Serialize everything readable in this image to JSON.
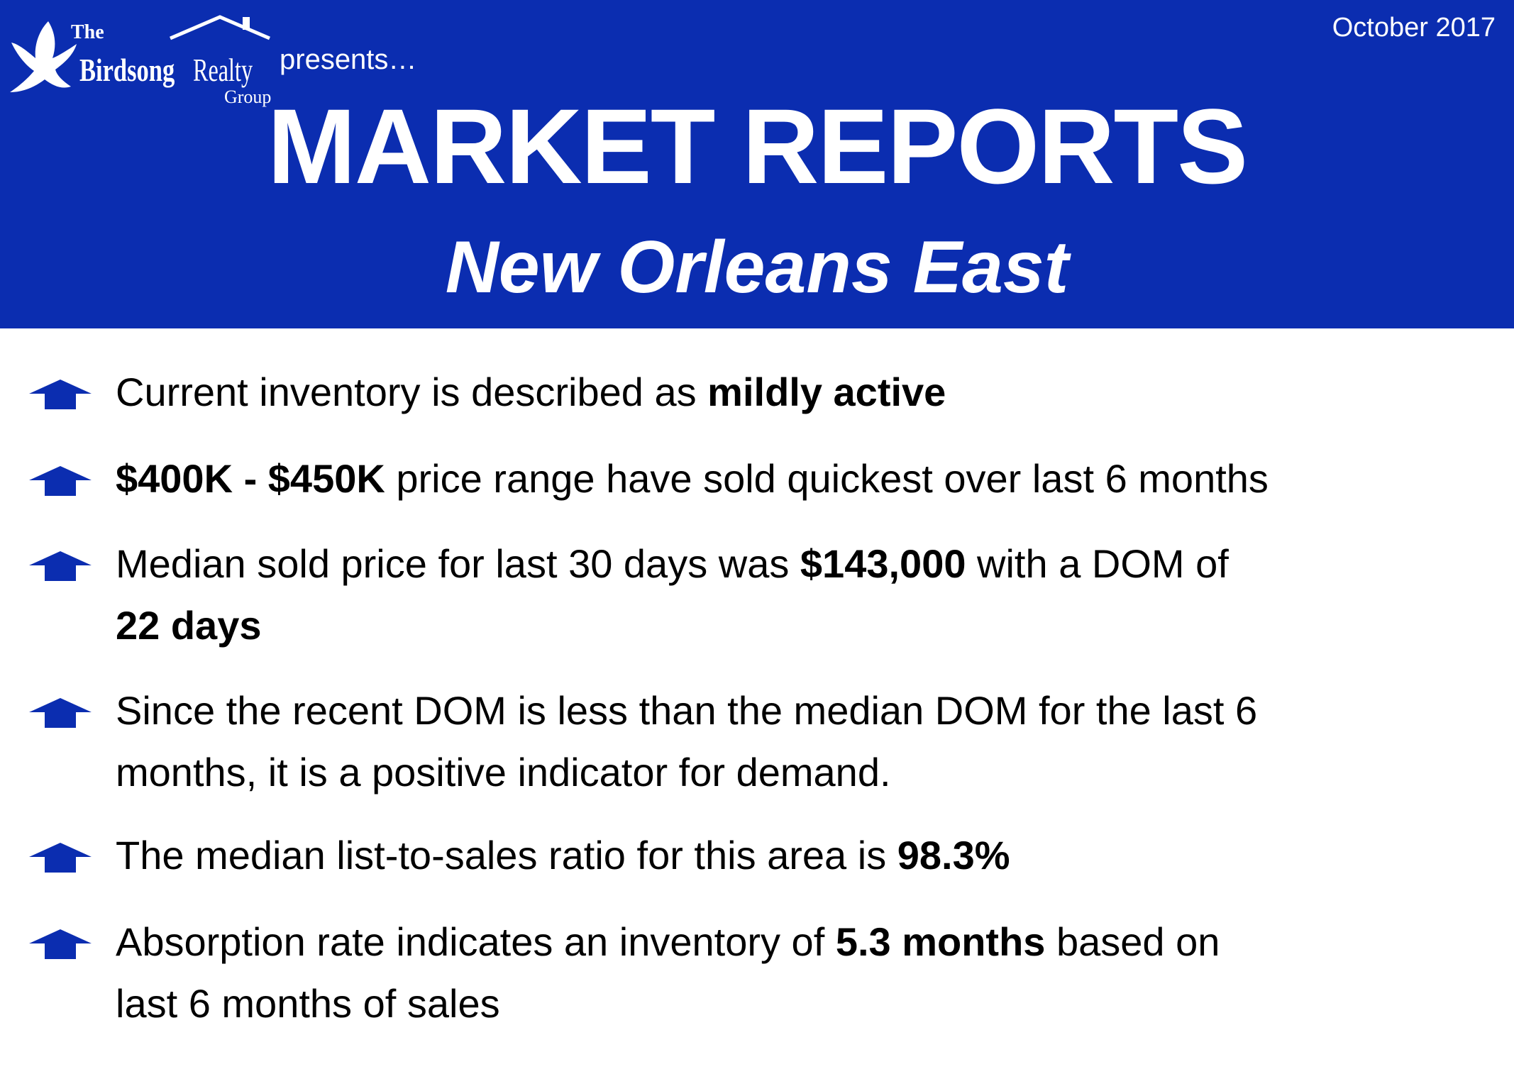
{
  "header": {
    "date": "October 2017",
    "logo": {
      "the": "The",
      "name1": "Birdsong",
      "name2": "Realty",
      "group": "Group"
    },
    "presents": "presents…",
    "title": "MARKET REPORTS",
    "subtitle": "New Orleans East"
  },
  "bullets": [
    {
      "lines": [
        [
          {
            "text": "Current inventory is described as ",
            "bold": false
          },
          {
            "text": "mildly active",
            "bold": true
          }
        ]
      ]
    },
    {
      "lines": [
        [
          {
            "text": "$400K - $450K",
            "bold": true
          },
          {
            "text": " price range have sold quickest over last 6 months",
            "bold": false
          }
        ]
      ]
    },
    {
      "lines": [
        [
          {
            "text": "Median sold price for last 30 days was ",
            "bold": false
          },
          {
            "text": "$143,000",
            "bold": true
          },
          {
            "text": " with a DOM of",
            "bold": false
          }
        ],
        [
          {
            "text": "22 days",
            "bold": true
          }
        ]
      ]
    },
    {
      "lines": [
        [
          {
            "text": "Since the recent DOM is less than the median DOM for the last 6",
            "bold": false
          }
        ],
        [
          {
            "text": "months, it is a positive indicator for demand.",
            "bold": false
          }
        ]
      ]
    },
    {
      "lines": [
        [
          {
            "text": "The median list-to-sales ratio for this area is ",
            "bold": false
          },
          {
            "text": "98.3%",
            "bold": true
          }
        ]
      ]
    },
    {
      "lines": [
        [
          {
            "text": "Absorption rate indicates an inventory of ",
            "bold": false
          },
          {
            "text": "5.3 months",
            "bold": true
          },
          {
            "text": " based on",
            "bold": false
          }
        ],
        [
          {
            "text": "last 6 months of sales",
            "bold": false
          }
        ]
      ]
    }
  ]
}
